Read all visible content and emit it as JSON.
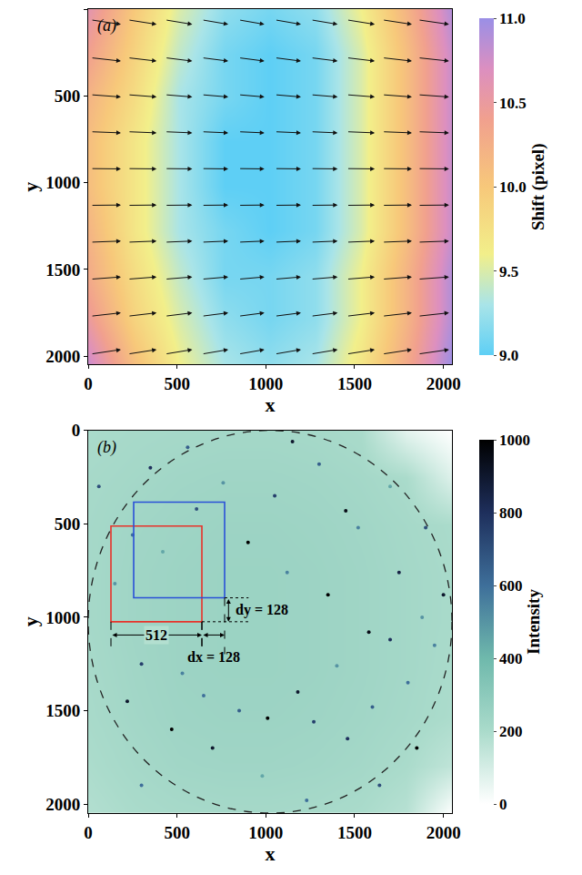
{
  "chart_data": [
    {
      "type": "heatmap",
      "label": "(a)",
      "x_label": "x",
      "y_label": "y",
      "xlim": [
        0,
        2048
      ],
      "ylim": [
        2048,
        0
      ],
      "xticks": [
        0,
        500,
        1000,
        1500,
        2000
      ],
      "yticks": [
        0,
        500,
        1000,
        1500,
        2000
      ],
      "cells": {
        "x": [
          0,
          256,
          512,
          768,
          1024,
          1280,
          1536,
          1792,
          2048
        ],
        "y": [
          0,
          256,
          512,
          768,
          1024,
          1280,
          1536,
          1792,
          2048
        ],
        "z": [
          [
            10.6,
            10.0,
            9.5,
            9.2,
            9.1,
            9.2,
            9.6,
            10.2,
            10.9
          ],
          [
            10.4,
            9.9,
            9.4,
            9.1,
            9.0,
            9.1,
            9.5,
            10.1,
            10.8
          ],
          [
            10.2,
            9.8,
            9.3,
            9.1,
            9.0,
            9.1,
            9.5,
            10.1,
            10.8
          ],
          [
            10.1,
            9.7,
            9.3,
            9.0,
            9.0,
            9.1,
            9.5,
            10.1,
            10.8
          ],
          [
            10.1,
            9.7,
            9.3,
            9.0,
            9.0,
            9.1,
            9.5,
            10.1,
            10.8
          ],
          [
            10.2,
            9.7,
            9.3,
            9.1,
            9.0,
            9.1,
            9.5,
            10.1,
            10.8
          ],
          [
            10.3,
            9.8,
            9.4,
            9.1,
            9.1,
            9.2,
            9.6,
            10.2,
            10.9
          ],
          [
            10.5,
            9.9,
            9.5,
            9.2,
            9.1,
            9.2,
            9.6,
            10.2,
            10.9
          ],
          [
            10.8,
            10.1,
            9.6,
            9.3,
            9.2,
            9.3,
            9.7,
            10.3,
            11.0
          ]
        ]
      },
      "colorbar": {
        "title": "Shift (pixel)",
        "range": [
          9,
          11
        ],
        "ticks": [
          {
            "value": 9,
            "label": "9.0"
          },
          9.5,
          {
            "value": 10,
            "label": "10.0"
          },
          10.5,
          {
            "value": 11,
            "label": "11.0"
          }
        ]
      },
      "arrows": {
        "x": [
          100,
          305,
          510,
          715,
          920,
          1125,
          1330,
          1535,
          1740,
          1945
        ],
        "y": [
          75,
          290,
          500,
          710,
          920,
          1130,
          1340,
          1550,
          1760,
          1975
        ],
        "u": [
          10.5,
          10.0,
          9.5,
          9.2,
          9.0,
          9.1,
          9.3,
          9.8,
          10.3,
          10.8
        ],
        "v": [
          1.6,
          1.2,
          0.8,
          0.4,
          0.1,
          -0.1,
          -0.4,
          -0.8,
          -1.2,
          -1.6
        ]
      }
    },
    {
      "type": "image",
      "label": "(b)",
      "x_label": "x",
      "y_label": "y",
      "xlim": [
        0,
        2048
      ],
      "ylim": [
        2048,
        0
      ],
      "xticks": [
        0,
        500,
        1000,
        1500,
        2000
      ],
      "yticks": [
        0,
        500,
        1000,
        1500,
        2000
      ],
      "cells": {
        "x": [
          0,
          256,
          512,
          768,
          1024,
          1280,
          1536,
          1792,
          2048
        ],
        "y": [
          0,
          256,
          512,
          768,
          1024,
          1280,
          1536,
          1792,
          2048
        ],
        "z": [
          [
            200,
            210,
            215,
            220,
            220,
            215,
            200,
            60,
            0
          ],
          [
            210,
            220,
            230,
            235,
            235,
            230,
            220,
            200,
            80
          ],
          [
            215,
            230,
            240,
            245,
            245,
            240,
            230,
            215,
            200
          ],
          [
            215,
            235,
            245,
            250,
            250,
            245,
            235,
            220,
            205
          ],
          [
            215,
            235,
            245,
            250,
            250,
            245,
            235,
            220,
            205
          ],
          [
            210,
            230,
            245,
            250,
            250,
            245,
            235,
            220,
            200
          ],
          [
            205,
            225,
            240,
            245,
            245,
            240,
            230,
            215,
            195
          ],
          [
            195,
            215,
            230,
            235,
            235,
            230,
            220,
            200,
            150
          ],
          [
            180,
            200,
            210,
            215,
            215,
            210,
            200,
            170,
            0
          ]
        ]
      },
      "spots": [
        [
          60,
          300,
          700
        ],
        [
          150,
          820,
          500
        ],
        [
          220,
          1450,
          900
        ],
        [
          300,
          1900,
          600
        ],
        [
          350,
          200,
          800
        ],
        [
          420,
          650,
          450
        ],
        [
          470,
          1600,
          1000
        ],
        [
          530,
          1300,
          550
        ],
        [
          610,
          420,
          700
        ],
        [
          700,
          1700,
          900
        ],
        [
          760,
          280,
          500
        ],
        [
          850,
          1500,
          650
        ],
        [
          900,
          600,
          1000
        ],
        [
          980,
          1850,
          450
        ],
        [
          1050,
          350,
          750
        ],
        [
          1120,
          760,
          550
        ],
        [
          1180,
          1400,
          900
        ],
        [
          1230,
          1980,
          600
        ],
        [
          1300,
          180,
          650
        ],
        [
          1350,
          880,
          1000
        ],
        [
          1400,
          1260,
          500
        ],
        [
          1460,
          1650,
          800
        ],
        [
          1520,
          520,
          550
        ],
        [
          1580,
          1080,
          950
        ],
        [
          1640,
          1900,
          700
        ],
        [
          1700,
          300,
          450
        ],
        [
          1750,
          760,
          850
        ],
        [
          1800,
          1350,
          600
        ],
        [
          1850,
          1700,
          1000
        ],
        [
          1900,
          520,
          700
        ],
        [
          1950,
          1150,
          550
        ],
        [
          2000,
          880,
          900
        ],
        [
          1270,
          1560,
          750
        ],
        [
          1600,
          1480,
          650
        ],
        [
          1010,
          1540,
          1000
        ],
        [
          650,
          1420,
          600
        ],
        [
          300,
          1250,
          750
        ],
        [
          1450,
          430,
          950
        ],
        [
          1880,
          1000,
          500
        ],
        [
          1700,
          1120,
          800
        ],
        [
          560,
          90,
          650
        ],
        [
          1150,
          60,
          900
        ],
        [
          250,
          560,
          600
        ]
      ],
      "circle": {
        "center": [
          1024,
          1024
        ],
        "radius": 1024,
        "line_style": "dash"
      },
      "boxes": [
        {
          "x": [
            128,
            640
          ],
          "y": [
            512,
            1024
          ],
          "color": "#e8322a"
        },
        {
          "x": [
            256,
            768
          ],
          "y": [
            384,
            896
          ],
          "color": "#2a50d8"
        }
      ],
      "dimensions": [
        {
          "label": "512",
          "x": [
            128,
            640
          ],
          "y": 1095
        },
        {
          "label": "dx = 128",
          "x": [
            640,
            768
          ],
          "y": 1095
        },
        {
          "label": "dy = 128",
          "y": [
            896,
            1024
          ],
          "x": 790
        }
      ],
      "colorbar": {
        "title": "Intensity",
        "range": [
          0,
          1000
        ],
        "ticks": [
          0,
          200,
          400,
          600,
          800,
          1000
        ]
      }
    }
  ]
}
